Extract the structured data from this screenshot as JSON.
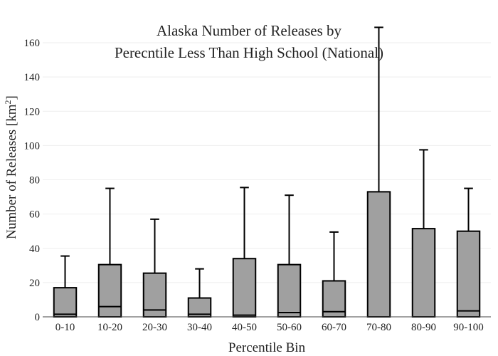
{
  "chart_data": {
    "type": "box",
    "title_lines": [
      "Alaska Number of Releases by",
      "Perecntile Less Than High School (National)"
    ],
    "xlabel": "Percentile Bin",
    "ylabel_main": "Number of Releases  [km",
    "ylabel_sup": "2",
    "ylabel_end": "]",
    "ylim": [
      0,
      170
    ],
    "yticks": [
      0,
      20,
      40,
      60,
      80,
      100,
      120,
      140,
      160
    ],
    "grid": true,
    "box_color": "#a0a0a0",
    "categories": [
      "0-10",
      "10-20",
      "20-30",
      "30-40",
      "40-50",
      "50-60",
      "60-70",
      "70-80",
      "80-90",
      "90-100"
    ],
    "boxes": [
      {
        "min": 0,
        "q1": 0,
        "median": 1.5,
        "q3": 17,
        "max": 35.5
      },
      {
        "min": 0,
        "q1": 0,
        "median": 6,
        "q3": 30.5,
        "max": 75
      },
      {
        "min": 0,
        "q1": 0,
        "median": 4,
        "q3": 25.5,
        "max": 57
      },
      {
        "min": 0,
        "q1": 0,
        "median": 1.5,
        "q3": 11,
        "max": 28
      },
      {
        "min": 0,
        "q1": 0,
        "median": 1,
        "q3": 34,
        "max": 75.5
      },
      {
        "min": 0,
        "q1": 0,
        "median": 2.5,
        "q3": 30.5,
        "max": 71
      },
      {
        "min": 0,
        "q1": 0,
        "median": 3,
        "q3": 21,
        "max": 49.5
      },
      {
        "min": 0,
        "q1": 0,
        "median": 0,
        "q3": 73,
        "max": 169
      },
      {
        "min": 0,
        "q1": 0,
        "median": 0,
        "q3": 51.5,
        "max": 97.5
      },
      {
        "min": 0,
        "q1": 0,
        "median": 3.5,
        "q3": 50,
        "max": 75
      }
    ]
  }
}
